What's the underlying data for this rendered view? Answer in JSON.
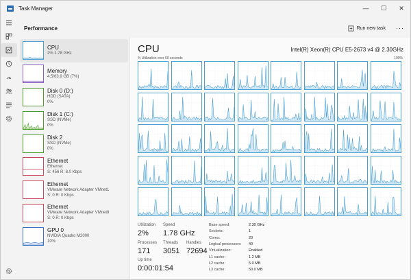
{
  "window": {
    "title": "Task Manager",
    "controls": {
      "minimize": "—",
      "maximize": "☐",
      "close": "✕"
    }
  },
  "header": {
    "title": "Performance",
    "run_task": "Run new task",
    "more": "···"
  },
  "rail": {
    "items": [
      "hamburger-icon",
      "processes-icon",
      "performance-icon",
      "history-icon",
      "startup-icon",
      "users-icon",
      "details-icon",
      "services-icon"
    ],
    "bottom": "settings-icon"
  },
  "devices": [
    {
      "name": "CPU",
      "sub1": "2% 1.78 GHz",
      "sub2": "",
      "color": "#4a9fcf"
    },
    {
      "name": "Memory",
      "sub1": "4.5/63.9 GB (7%)",
      "sub2": "",
      "color": "#8b5cc4"
    },
    {
      "name": "Disk 0 (D:)",
      "sub1": "HDD (SATA)",
      "sub2": "0%",
      "color": "#4c9a2a"
    },
    {
      "name": "Disk 1 (C:)",
      "sub1": "SSD (NVMe)",
      "sub2": "0%",
      "color": "#4c9a2a"
    },
    {
      "name": "Disk 2",
      "sub1": "SSD (NVMe)",
      "sub2": "0%",
      "color": "#4c9a2a"
    },
    {
      "name": "Ethernet",
      "sub1": "Ethernet",
      "sub2": "S: 456 R: 8.0 Kbps",
      "color": "#c8475a"
    },
    {
      "name": "Ethernet",
      "sub1": "VMware Network Adapter VMnet1",
      "sub2": "S: 0 R: 0 Kbps",
      "color": "#c8475a"
    },
    {
      "name": "Ethernet",
      "sub1": "VMware Network Adapter VMnet8",
      "sub2": "S: 0 R: 0 Kbps",
      "color": "#c8475a"
    },
    {
      "name": "GPU 0",
      "sub1": "NVIDIA Quadro M2000",
      "sub2": "10%",
      "color": "#3b6fc4"
    }
  ],
  "cpu": {
    "title": "CPU",
    "model": "Intel(R) Xeon(R) CPU E5-2673 v4 @ 2.30GHz",
    "util_label": "% Utilization over 60 seconds",
    "util_max": "100%",
    "stats": {
      "utilization": {
        "label": "Utilization",
        "value": "2%"
      },
      "speed": {
        "label": "Speed",
        "value": "1.78 GHz"
      },
      "processes": {
        "label": "Processes",
        "value": "171"
      },
      "threads": {
        "label": "Threads",
        "value": "3051"
      },
      "handles": {
        "label": "Handles",
        "value": "72694"
      },
      "uptime": {
        "label": "Up time",
        "value": "0:00:01:54"
      }
    },
    "specs": [
      {
        "label": "Base speed:",
        "value": "2.30 GHz"
      },
      {
        "label": "Sockets:",
        "value": "1"
      },
      {
        "label": "Cores:",
        "value": "20"
      },
      {
        "label": "Logical processors:",
        "value": "40"
      },
      {
        "label": "Virtualization:",
        "value": "Enabled"
      },
      {
        "label": "L1 cache:",
        "value": "1.2 MB"
      },
      {
        "label": "L2 cache:",
        "value": "5.0 MB"
      },
      {
        "label": "L3 cache:",
        "value": "50.0 MB"
      }
    ]
  },
  "colors": {
    "cpu_line": "#4a9fcf",
    "cpu_fill": "#cfe7f5"
  }
}
